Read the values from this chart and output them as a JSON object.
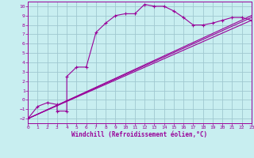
{
  "xlabel": "Windchill (Refroidissement éolien,°C)",
  "bg_color": "#c8eef0",
  "grid_color": "#a0c8d0",
  "line_color": "#990099",
  "xlim": [
    0,
    23
  ],
  "ylim": [
    -2.5,
    10.5
  ],
  "xticks": [
    0,
    1,
    2,
    3,
    4,
    5,
    6,
    7,
    8,
    9,
    10,
    11,
    12,
    13,
    14,
    15,
    16,
    17,
    18,
    19,
    20,
    21,
    22,
    23
  ],
  "yticks": [
    -2,
    -1,
    0,
    1,
    2,
    3,
    4,
    5,
    6,
    7,
    8,
    9,
    10
  ],
  "curve1_x": [
    0,
    1,
    2,
    3,
    3,
    4,
    4,
    5,
    6,
    7,
    8,
    9,
    10,
    11,
    12,
    13,
    14,
    15,
    16,
    17,
    18,
    19,
    20,
    21,
    22,
    23
  ],
  "curve1_y": [
    -2,
    -0.7,
    -0.3,
    -0.5,
    -1.2,
    -1.2,
    2.5,
    3.5,
    3.5,
    7.2,
    8.2,
    9.0,
    9.2,
    9.2,
    10.2,
    10.0,
    10.0,
    9.5,
    8.8,
    8.0,
    8.0,
    8.2,
    8.5,
    8.8,
    8.8,
    8.5
  ],
  "curve2_x": [
    0,
    23
  ],
  "curve2_y": [
    -2,
    8.5
  ],
  "curve3_x": [
    0,
    23
  ],
  "curve3_y": [
    -2,
    8.8
  ],
  "curve4_x": [
    0,
    23
  ],
  "curve4_y": [
    -2,
    9.0
  ],
  "lw": 0.8,
  "label_fontsize": 4.5,
  "xlabel_fontsize": 5.5
}
